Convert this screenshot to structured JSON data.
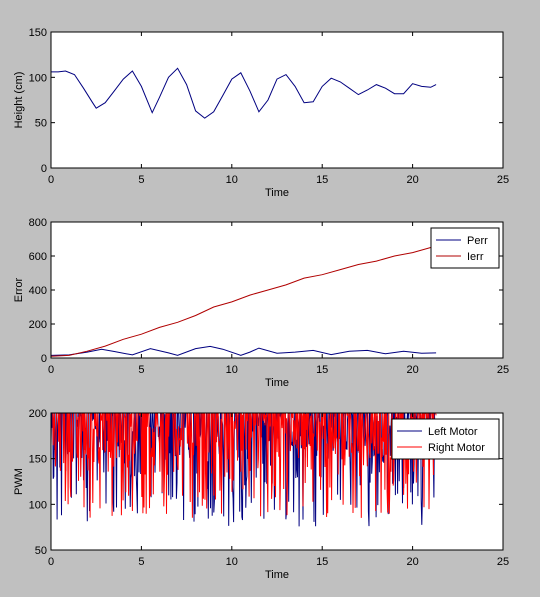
{
  "chart_data": [
    {
      "type": "line",
      "xlabel": "Time",
      "ylabel": "Height (cm)",
      "xlim": [
        0,
        25
      ],
      "ylim": [
        0,
        150
      ],
      "xticks": [
        "0",
        "5",
        "10",
        "15",
        "20",
        "25"
      ],
      "yticks": [
        "0",
        "50",
        "100",
        "150"
      ],
      "grid": false,
      "series": [
        {
          "color": "#000080",
          "x": [
            0,
            0.4,
            0.8,
            1.3,
            1.8,
            2.3,
            2.5,
            3.0,
            3.5,
            4.0,
            4.5,
            5.0,
            5.6,
            6.0,
            6.5,
            7.0,
            7.5,
            8.0,
            8.5,
            9.0,
            9.5,
            10.0,
            10.5,
            11.0,
            11.5,
            12.0,
            12.5,
            13.0,
            13.5,
            14.0,
            14.5,
            15.0,
            15.5,
            16.0,
            16.5,
            17.0,
            17.5,
            18.0,
            18.5,
            19.0,
            19.5,
            20.0,
            20.5,
            21.0,
            21.3
          ],
          "values": [
            106,
            106,
            107,
            103,
            88,
            72,
            66,
            72,
            85,
            98,
            107,
            90,
            61,
            78,
            100,
            110,
            92,
            63,
            55,
            62,
            80,
            98,
            105,
            85,
            62,
            75,
            98,
            103,
            90,
            72,
            73,
            90,
            99,
            95,
            88,
            81,
            86,
            92,
            88,
            82,
            82,
            93,
            90,
            89,
            92
          ]
        }
      ]
    },
    {
      "type": "line",
      "xlabel": "Time",
      "ylabel": "Error",
      "xlim": [
        0,
        25
      ],
      "ylim": [
        0,
        800
      ],
      "xticks": [
        "0",
        "5",
        "10",
        "15",
        "20",
        "25"
      ],
      "yticks": [
        "0",
        "200",
        "400",
        "600",
        "800"
      ],
      "grid": false,
      "legend": "top-right",
      "series": [
        {
          "name": "Perr",
          "color": "#000080",
          "x": [
            0,
            1,
            2,
            2.8,
            3.5,
            4.5,
            5.5,
            6.5,
            7.0,
            8.0,
            8.8,
            9.5,
            10.5,
            11.0,
            11.5,
            12.5,
            13.5,
            14.5,
            15.5,
            16.5,
            17.5,
            18.5,
            19.5,
            20.5,
            21.3
          ],
          "values": [
            15,
            18,
            35,
            52,
            38,
            18,
            55,
            30,
            15,
            55,
            68,
            52,
            15,
            35,
            58,
            28,
            35,
            45,
            20,
            40,
            45,
            25,
            40,
            28,
            30
          ]
        },
        {
          "name": "Ierr",
          "color": "#b00000",
          "x": [
            0,
            1,
            2,
            3,
            4,
            5,
            6,
            7,
            8,
            9,
            10,
            11,
            12,
            13,
            14,
            15,
            16,
            17,
            18,
            19,
            20,
            21,
            21.3
          ],
          "values": [
            10,
            15,
            40,
            70,
            110,
            140,
            180,
            210,
            250,
            300,
            330,
            370,
            400,
            430,
            470,
            490,
            520,
            550,
            570,
            600,
            620,
            650,
            655
          ]
        }
      ]
    },
    {
      "type": "line",
      "xlabel": "Time",
      "ylabel": "PWM",
      "xlim": [
        0,
        25
      ],
      "ylim": [
        50,
        200
      ],
      "xticks": [
        "0",
        "5",
        "10",
        "15",
        "20",
        "25"
      ],
      "yticks": [
        "50",
        "100",
        "150",
        "200"
      ],
      "grid": false,
      "legend": "top-right",
      "series": [
        {
          "name": "Left Motor",
          "color": "#000080",
          "x_range": [
            0,
            21.3
          ],
          "min": 75,
          "max": 200
        },
        {
          "name": "Right Motor",
          "color": "#ff0000",
          "x_range": [
            0,
            21.3
          ],
          "min": 85,
          "max": 200
        }
      ]
    }
  ]
}
